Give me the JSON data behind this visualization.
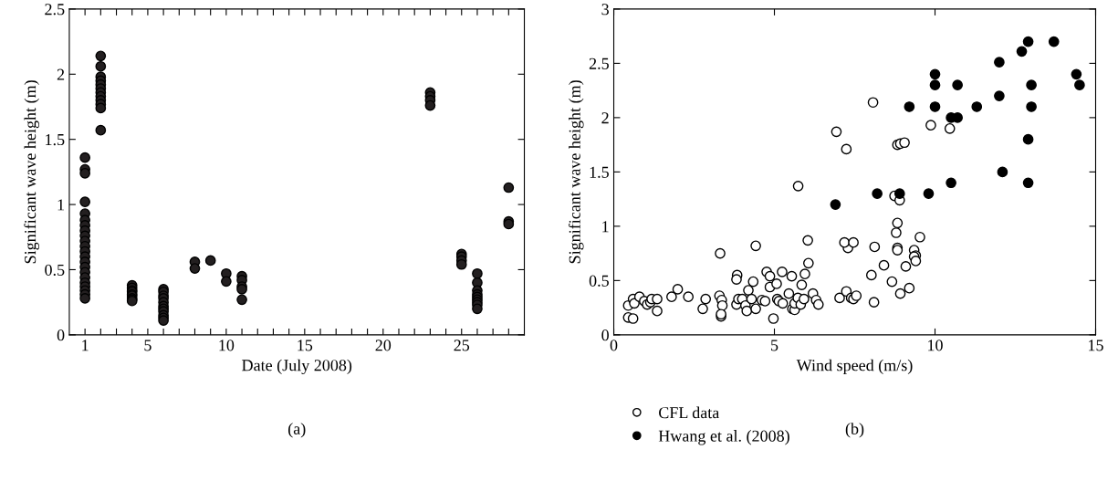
{
  "chart_data": [
    {
      "type": "scatter",
      "xlabel": "Date (July 2008)",
      "ylabel": "Significant wave height (m)",
      "annotations": [
        "(a)"
      ],
      "marker": "circle",
      "grid": false,
      "legend": false,
      "xlim": [
        0,
        29
      ],
      "ylim": [
        0,
        2.5
      ],
      "xticks": [
        {
          "value": 1,
          "label": "1"
        },
        {
          "value": 2,
          "label": null
        },
        {
          "value": 3,
          "label": null
        },
        {
          "value": 4,
          "label": null
        },
        {
          "value": 5,
          "label": "5"
        },
        {
          "value": 6,
          "label": null
        },
        {
          "value": 7,
          "label": null
        },
        {
          "value": 8,
          "label": null
        },
        {
          "value": 9,
          "label": null
        },
        {
          "value": 10,
          "label": "10"
        },
        {
          "value": 11,
          "label": null
        },
        {
          "value": 12,
          "label": null
        },
        {
          "value": 13,
          "label": null
        },
        {
          "value": 14,
          "label": null
        },
        {
          "value": 15,
          "label": "15"
        },
        {
          "value": 16,
          "label": null
        },
        {
          "value": 17,
          "label": null
        },
        {
          "value": 18,
          "label": null
        },
        {
          "value": 19,
          "label": null
        },
        {
          "value": 20,
          "label": "20"
        },
        {
          "value": 21,
          "label": null
        },
        {
          "value": 22,
          "label": null
        },
        {
          "value": 23,
          "label": null
        },
        {
          "value": 24,
          "label": null
        },
        {
          "value": 25,
          "label": "25"
        },
        {
          "value": 26,
          "label": null
        },
        {
          "value": 27,
          "label": null
        },
        {
          "value": 28,
          "label": null
        }
      ],
      "yticks": [
        0,
        0.5,
        1,
        1.5,
        2,
        2.5
      ],
      "series": [
        {
          "color": "#231f20",
          "x": [
            1,
            1,
            1,
            1,
            1,
            1,
            1,
            1,
            1,
            1,
            1,
            1,
            1,
            1,
            1,
            1,
            1,
            1,
            1,
            1,
            1,
            1,
            2,
            2,
            2,
            2,
            2,
            2,
            2,
            2,
            2,
            2,
            2,
            2,
            4,
            4,
            4,
            4,
            4,
            4,
            4,
            4,
            4,
            6,
            6,
            6,
            6,
            6,
            6,
            6,
            6,
            6,
            6,
            6,
            8,
            8,
            9,
            10,
            10,
            11,
            11,
            11,
            11,
            11,
            23,
            23,
            23,
            23,
            25,
            25,
            25,
            25,
            26,
            26,
            26,
            26,
            26,
            26,
            26,
            26,
            26,
            28,
            28,
            28
          ],
          "values": [
            1.36,
            1.27,
            1.24,
            1.02,
            0.93,
            0.88,
            0.84,
            0.8,
            0.76,
            0.72,
            0.68,
            0.64,
            0.6,
            0.56,
            0.52,
            0.48,
            0.44,
            0.4,
            0.37,
            0.34,
            0.31,
            0.28,
            2.14,
            2.06,
            1.98,
            1.95,
            1.92,
            1.89,
            1.86,
            1.83,
            1.8,
            1.77,
            1.74,
            1.57,
            0.38,
            0.36,
            0.34,
            0.33,
            0.31,
            0.3,
            0.28,
            0.27,
            0.26,
            0.35,
            0.33,
            0.3,
            0.28,
            0.25,
            0.22,
            0.2,
            0.18,
            0.15,
            0.13,
            0.11,
            0.56,
            0.51,
            0.57,
            0.47,
            0.41,
            0.45,
            0.42,
            0.37,
            0.35,
            0.27,
            1.86,
            1.83,
            1.8,
            1.76,
            0.62,
            0.6,
            0.57,
            0.54,
            0.47,
            0.4,
            0.34,
            0.31,
            0.29,
            0.27,
            0.25,
            0.23,
            0.2,
            1.13,
            0.87,
            0.85
          ]
        }
      ]
    },
    {
      "type": "scatter",
      "xlabel": "Wind speed (m/s)",
      "ylabel": "Significant wave height (m)",
      "annotations": [
        "(b)"
      ],
      "marker": "circle",
      "grid": false,
      "legend": "bottom",
      "xlim": [
        0,
        15
      ],
      "ylim": [
        0,
        3
      ],
      "xticks": [
        0,
        5,
        10,
        15
      ],
      "yticks": [
        0,
        0.5,
        1,
        1.5,
        2,
        2.5,
        3
      ],
      "series": [
        {
          "name": "CFL data",
          "color": "#ffffff",
          "x": [
            0.45,
            0.6,
            0.45,
            0.6,
            0.64,
            0.8,
            0.95,
            1.04,
            1.14,
            1.18,
            1.35,
            1.35,
            1.8,
            1.99,
            2.32,
            2.77,
            2.86,
            3.31,
            3.29,
            3.36,
            3.38,
            3.34,
            3.34,
            3.84,
            3.82,
            3.82,
            3.88,
            4.0,
            4.1,
            4.14,
            4.19,
            4.34,
            4.29,
            4.42,
            4.42,
            4.61,
            4.71,
            4.76,
            4.86,
            4.86,
            5.07,
            4.97,
            5.09,
            5.14,
            5.24,
            5.26,
            5.45,
            5.54,
            5.56,
            5.63,
            5.63,
            5.73,
            5.82,
            5.85,
            5.92,
            5.95,
            6.06,
            6.04,
            6.2,
            6.3,
            6.37,
            7.03,
            7.24,
            7.29,
            7.18,
            7.46,
            7.39,
            7.46,
            7.55,
            8.02,
            8.1,
            8.12,
            8.41,
            8.66,
            8.07,
            6.93,
            7.24,
            5.74,
            9.87,
            10.46,
            8.83,
            8.92,
            9.05,
            8.74,
            8.9,
            8.83,
            8.79,
            8.83,
            8.83,
            9.53,
            9.35,
            9.4,
            9.35,
            9.4,
            9.09,
            8.92,
            9.2
          ],
          "values": [
            0.16,
            0.15,
            0.27,
            0.33,
            0.29,
            0.35,
            0.31,
            0.28,
            0.3,
            0.33,
            0.33,
            0.22,
            0.35,
            0.42,
            0.35,
            0.24,
            0.33,
            0.75,
            0.36,
            0.32,
            0.27,
            0.17,
            0.19,
            0.55,
            0.51,
            0.28,
            0.33,
            0.33,
            0.27,
            0.22,
            0.41,
            0.49,
            0.33,
            0.24,
            0.82,
            0.32,
            0.31,
            0.58,
            0.54,
            0.44,
            0.47,
            0.15,
            0.33,
            0.31,
            0.58,
            0.29,
            0.38,
            0.54,
            0.24,
            0.23,
            0.29,
            0.34,
            0.28,
            0.46,
            0.33,
            0.56,
            0.66,
            0.87,
            0.38,
            0.32,
            0.28,
            0.34,
            0.4,
            0.8,
            0.85,
            0.85,
            0.34,
            0.33,
            0.36,
            0.55,
            0.3,
            0.81,
            0.64,
            0.49,
            2.14,
            1.87,
            1.71,
            1.37,
            1.93,
            1.9,
            1.75,
            1.76,
            1.77,
            1.28,
            1.24,
            1.03,
            0.94,
            0.8,
            0.78,
            0.9,
            0.78,
            0.73,
            0.72,
            0.68,
            0.63,
            0.38,
            0.43
          ]
        },
        {
          "name": "Hwang et al. (2008)",
          "color": "#000000",
          "x": [
            12.9,
            13.7,
            12.7,
            12.0,
            10.0,
            14.4,
            10.0,
            10.7,
            13.0,
            14.5,
            12.0,
            9.2,
            10.0,
            11.3,
            13.0,
            10.5,
            10.7,
            12.9,
            12.1,
            10.5,
            12.9,
            8.2,
            8.9,
            9.8,
            6.9
          ],
          "values": [
            2.7,
            2.7,
            2.61,
            2.51,
            2.4,
            2.4,
            2.3,
            2.3,
            2.3,
            2.3,
            2.2,
            2.1,
            2.1,
            2.1,
            2.1,
            2.0,
            2.0,
            1.8,
            1.5,
            1.4,
            1.4,
            1.3,
            1.3,
            1.3,
            1.2
          ]
        }
      ]
    }
  ]
}
